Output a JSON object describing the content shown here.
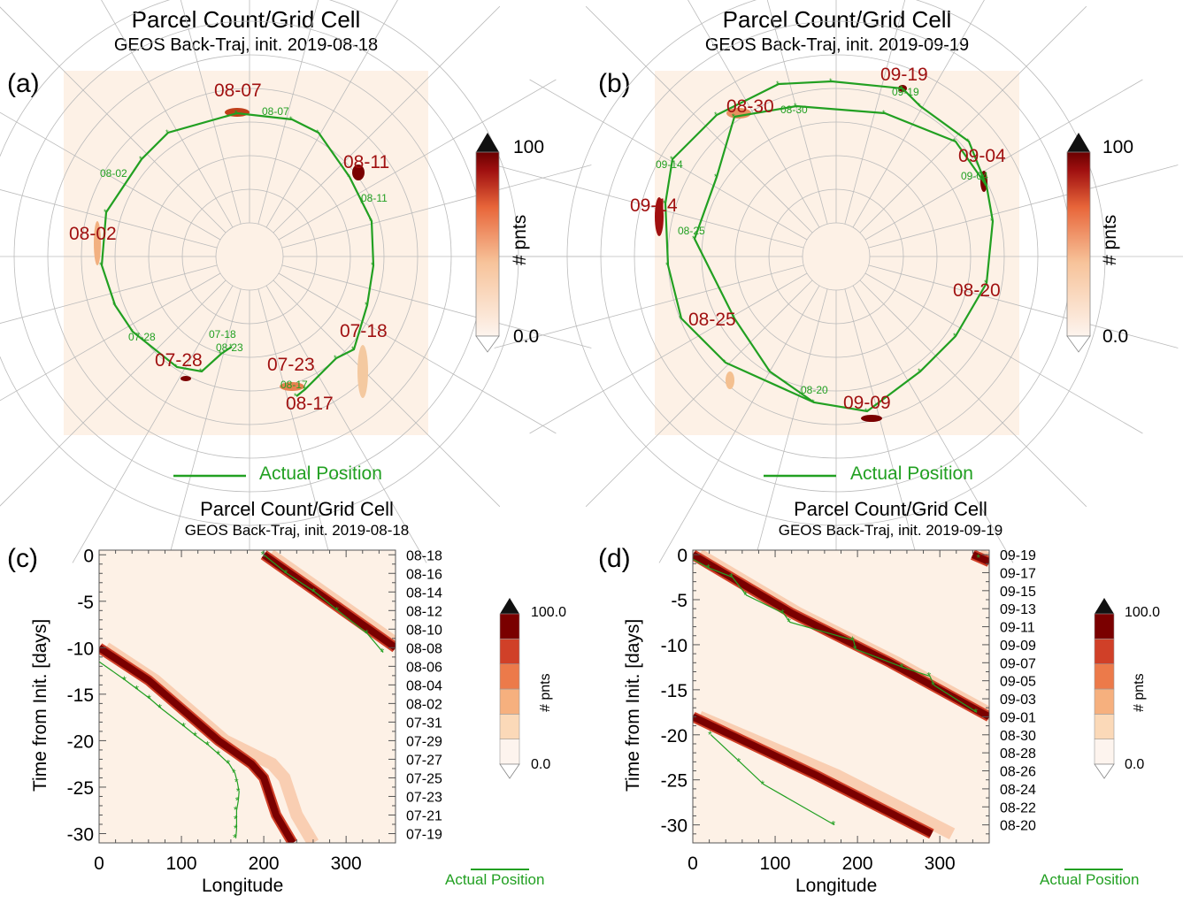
{
  "panels": {
    "a": {
      "letter": "(a)",
      "title": "Parcel Count/Grid Cell",
      "subtitle": "GEOS Back-Traj, init. 2019-08-18",
      "red_labels": [
        "08-07",
        "08-11",
        "08-02",
        "07-18",
        "07-23",
        "07-28",
        "08-17"
      ],
      "green_labels": [
        "08-07",
        "08-02",
        "08-11",
        "07-28",
        "07-18",
        "08-23",
        "08-17"
      ],
      "legend": "Actual Position",
      "colorbar": {
        "max": "100",
        "min": "0.0",
        "label": "# pnts"
      }
    },
    "b": {
      "letter": "(b)",
      "title": "Parcel Count/Grid Cell",
      "subtitle": "GEOS Back-Traj, init. 2019-09-19",
      "red_labels": [
        "09-19",
        "08-30",
        "09-04",
        "09-14",
        "08-20",
        "08-25",
        "09-09"
      ],
      "green_labels": [
        "09-19",
        "08-30",
        "09-14",
        "09-04",
        "08-25",
        "08-20"
      ],
      "legend": "Actual Position",
      "colorbar": {
        "max": "100",
        "min": "0.0",
        "label": "# pnts"
      }
    },
    "c": {
      "letter": "(c)",
      "legend": "Actual Position",
      "colorbar": {
        "max": "100.0",
        "min": "0.0",
        "label": "# pnts"
      }
    },
    "d": {
      "letter": "(d)",
      "legend": "Actual Position",
      "colorbar": {
        "max": "100.0",
        "min": "0.0",
        "label": "# pnts"
      }
    }
  },
  "colors": {
    "background": "#fdf1e6",
    "track": "#22a022",
    "max": "#7a0000",
    "overflow": "#111111"
  },
  "chart_data": [
    {
      "type": "heatmap",
      "title": "Parcel Count/Grid Cell",
      "subtitle": "GEOS Back-Traj, init. 2019-08-18",
      "xlabel": "Longitude",
      "ylabel": "Time from Init. [days]",
      "xlim": [
        0,
        360
      ],
      "ylim": [
        -31,
        0.5
      ],
      "xticks": [
        "0",
        "100",
        "200",
        "300"
      ],
      "yticks": [
        "0",
        "-5",
        "-10",
        "-15",
        "-20",
        "-25",
        "-30"
      ],
      "right_ticks": [
        "08-18",
        "08-16",
        "08-14",
        "08-12",
        "08-10",
        "08-08",
        "08-06",
        "08-04",
        "08-02",
        "07-31",
        "07-29",
        "07-27",
        "07-25",
        "07-23",
        "07-21",
        "07-19"
      ],
      "colorbar_levels": [
        0,
        20,
        40,
        60,
        80,
        100
      ],
      "max_band": [
        [
          [
            200,
            0
          ],
          [
            360,
            -10
          ]
        ],
        [
          [
            0,
            -10
          ],
          [
            60,
            -13.5
          ],
          [
            145,
            -20
          ],
          [
            185,
            -22.5
          ],
          [
            200,
            -24
          ],
          [
            215,
            -28
          ],
          [
            235,
            -31
          ]
        ]
      ],
      "actual_position": {
        "name": "Actual Position",
        "points": [
          [
            [
              200,
              0
            ],
            [
              228,
              -2
            ],
            [
              262,
              -4
            ],
            [
              290,
              -6
            ],
            [
              326,
              -8.5
            ],
            [
              345,
              -10.5
            ]
          ],
          [
            [
              0,
              -11.5
            ],
            [
              32,
              -13.5
            ],
            [
              47,
              -14.5
            ],
            [
              62,
              -15.5
            ],
            [
              75,
              -16.5
            ],
            [
              104,
              -18.5
            ],
            [
              118,
              -19.5
            ],
            [
              133,
              -20.5
            ],
            [
              146,
              -21.5
            ],
            [
              158,
              -22.5
            ],
            [
              165,
              -23.5
            ],
            [
              168,
              -24.5
            ],
            [
              170,
              -25.5
            ],
            [
              169,
              -26.5
            ],
            [
              167,
              -27.5
            ],
            [
              167,
              -28.5
            ],
            [
              167,
              -29.5
            ],
            [
              166,
              -30.5
            ]
          ]
        ]
      }
    },
    {
      "type": "heatmap",
      "title": "Parcel Count/Grid Cell",
      "subtitle": "GEOS Back-Traj, init. 2019-09-19",
      "xlabel": "Longitude",
      "ylabel": "Time from Init. [days]",
      "xlim": [
        0,
        360
      ],
      "ylim": [
        -32,
        0.5
      ],
      "xticks": [
        "0",
        "100",
        "200",
        "300"
      ],
      "yticks": [
        "0",
        "-5",
        "-10",
        "-15",
        "-20",
        "-25",
        "-30"
      ],
      "right_ticks": [
        "09-19",
        "09-17",
        "09-15",
        "09-13",
        "09-11",
        "09-09",
        "09-07",
        "09-05",
        "09-03",
        "09-01",
        "08-30",
        "08-28",
        "08-26",
        "08-24",
        "08-22",
        "08-20"
      ],
      "colorbar_levels": [
        0,
        20,
        40,
        60,
        80,
        100
      ],
      "max_band": [
        [
          [
            340,
            0
          ],
          [
            360,
            -0.8
          ]
        ],
        [
          [
            0,
            0
          ],
          [
            120,
            -6.5
          ],
          [
            240,
            -12
          ],
          [
            360,
            -18
          ]
        ],
        [
          [
            0,
            -18
          ],
          [
            150,
            -24.5
          ],
          [
            290,
            -31
          ]
        ]
      ],
      "actual_position": {
        "name": "Actual Position",
        "points": [
          [
            [
              348,
              -0.4
            ]
          ],
          [
            [
              0,
              -0.5
            ],
            [
              20,
              -1.5
            ],
            [
              48,
              -2.5
            ],
            [
              65,
              -4.5
            ],
            [
              110,
              -6.5
            ],
            [
              118,
              -7.5
            ],
            [
              195,
              -9.5
            ],
            [
              198,
              -10.5
            ],
            [
              255,
              -12.5
            ],
            [
              288,
              -13.5
            ],
            [
              293,
              -14.5
            ],
            [
              345,
              -17.5
            ]
          ],
          [
            [
              22,
              -20
            ],
            [
              57,
              -23
            ],
            [
              86,
              -25.5
            ],
            [
              172,
              -30
            ]
          ]
        ]
      }
    }
  ]
}
